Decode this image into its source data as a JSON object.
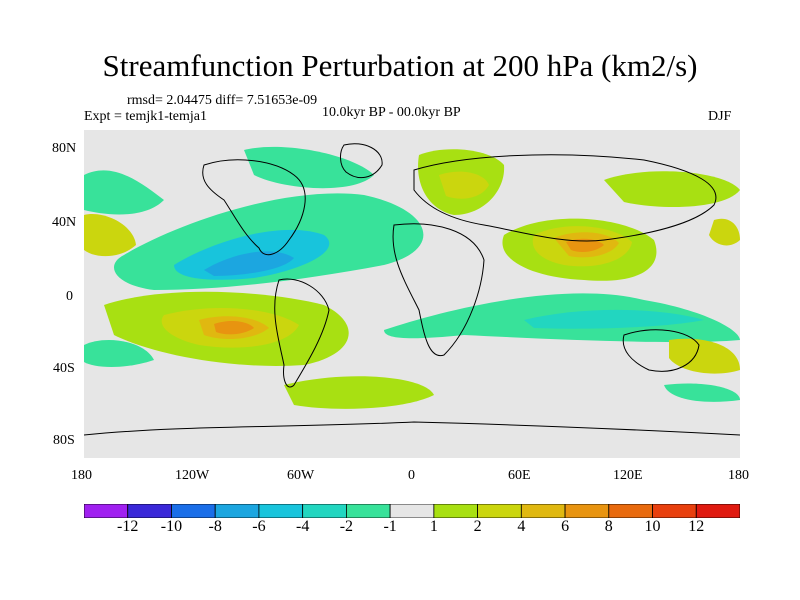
{
  "title": "Streamfunction Perturbation at 200 hPa (km2/s)",
  "stats": "rmsd= 2.04475 diff= 7.51653e-09",
  "experiment": "Expt = temjk1-temja1",
  "period": "10.0kyr BP - 00.0kyr BP",
  "season": "DJF",
  "lat_ticks": [
    "80N",
    "40N",
    "0",
    "40S",
    "80S"
  ],
  "lon_ticks": [
    "180",
    "120W",
    "60W",
    "0",
    "60E",
    "120E",
    "180"
  ],
  "colorbar": {
    "labels": [
      "-12",
      "-10",
      "-8",
      "-6",
      "-4",
      "-2",
      "-1",
      "1",
      "2",
      "4",
      "6",
      "8",
      "10",
      "12"
    ],
    "colors": [
      "#a020f0",
      "#3a28d8",
      "#1a6ee8",
      "#1ca6e0",
      "#18c4dc",
      "#22d6c0",
      "#38e29a",
      "#e6e6e6",
      "#a8e012",
      "#cbd60e",
      "#e0b810",
      "#e89410",
      "#e86a0e",
      "#e8400e",
      "#e01a10"
    ]
  }
}
